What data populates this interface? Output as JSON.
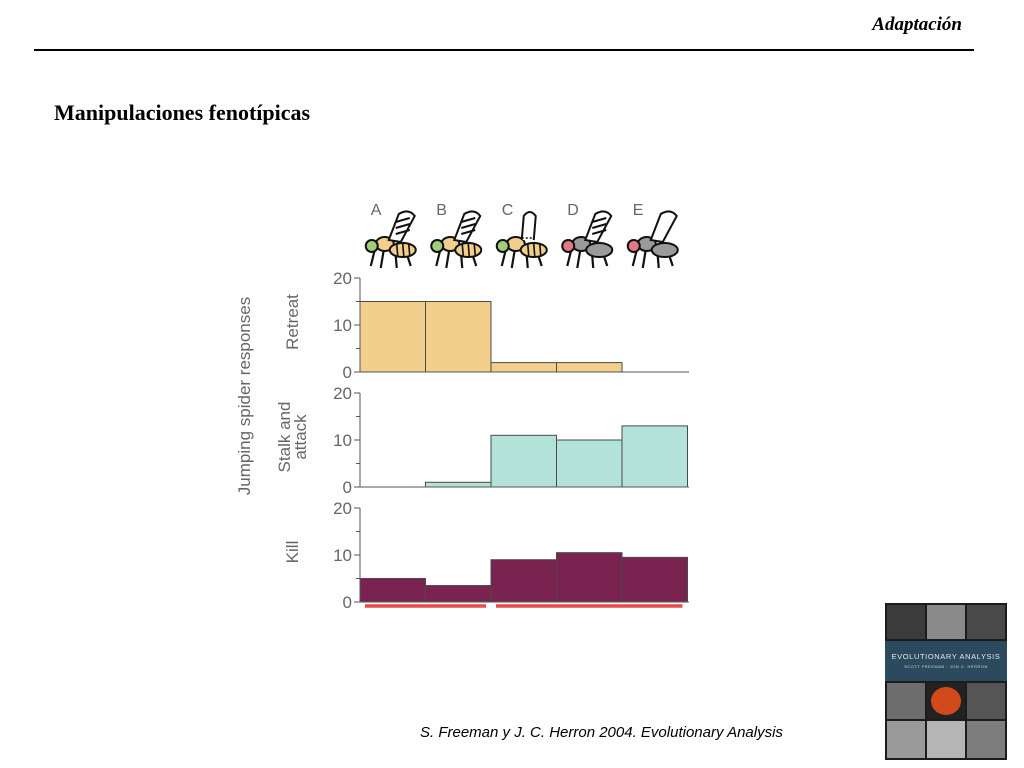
{
  "header": {
    "title": "Adaptación"
  },
  "slide": {
    "title": "Manipulaciones fenotípicas"
  },
  "citation": "S. Freeman y J. C. Herron 2004. Evolutionary Analysis",
  "book_cover": {
    "title": "EVOLUTIONARY ANALYSIS",
    "authors": "SCOTT FREEMAN · JON C. HERRON"
  },
  "chart_data": {
    "type": "bar",
    "categories": [
      "A",
      "B",
      "C",
      "D",
      "E"
    ],
    "ylabel": "Jumping spider responses",
    "panels": [
      {
        "name": "Retreat",
        "values": [
          15,
          15,
          2,
          2,
          0
        ],
        "color": "#f2cf8a",
        "ylim": [
          0,
          20
        ],
        "yticks": [
          "20",
          "10",
          "0"
        ]
      },
      {
        "name": "Stalk and attack",
        "values": [
          0,
          1,
          11,
          10,
          13
        ],
        "color": "#b3e2d8",
        "ylim": [
          0,
          20
        ],
        "yticks": [
          "20",
          "10",
          "0"
        ]
      },
      {
        "name": "Kill",
        "values": [
          5,
          3.5,
          9,
          10.5,
          9.5
        ],
        "color": "#7a2350",
        "ylim": [
          0,
          20
        ],
        "yticks": [
          "20",
          "10",
          "0"
        ]
      }
    ],
    "groups": [
      {
        "from": "A",
        "to": "B",
        "color": "#e84a4a"
      },
      {
        "from": "C",
        "to": "E",
        "color": "#e84a4a"
      }
    ],
    "grid": false,
    "legend": "none"
  }
}
